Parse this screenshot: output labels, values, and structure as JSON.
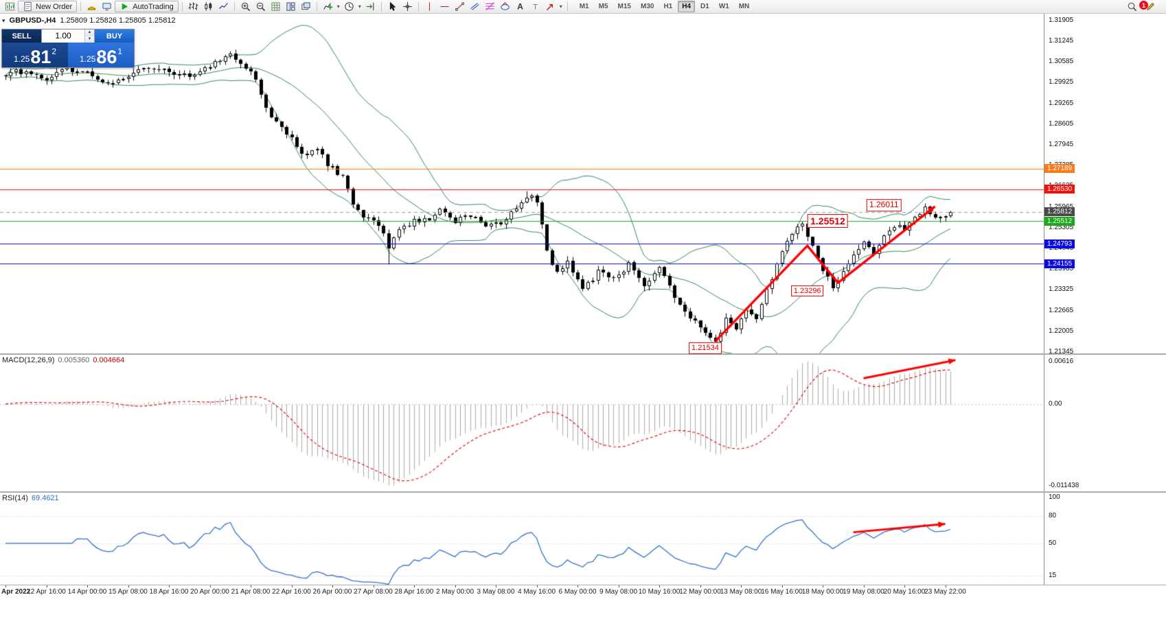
{
  "window": {
    "notification_badge": "1"
  },
  "toolbar": {
    "new_order": "New Order",
    "autotrading": "AutoTrading",
    "timeframes": [
      "M1",
      "M5",
      "M15",
      "M30",
      "H1",
      "H4",
      "D1",
      "W1",
      "MN"
    ],
    "active_timeframe": "H4"
  },
  "one_click": {
    "sell_label": "SELL",
    "buy_label": "BUY",
    "volume": "1.00",
    "sell_price": {
      "prefix": "1.25",
      "big": "81",
      "sup": "2"
    },
    "buy_price": {
      "prefix": "1.25",
      "big": "86",
      "sup": "1"
    }
  },
  "chart": {
    "symbol_timeframe": "GBPUSD-,H4",
    "ohlc": "1.25809 1.25826 1.25805 1.25812"
  },
  "price_axis": {
    "ticks": [
      "1.31905",
      "1.31245",
      "1.30585",
      "1.29925",
      "1.29265",
      "1.28605",
      "1.27945",
      "1.27285",
      "1.26625",
      "1.25965",
      "1.25305",
      "1.24645",
      "1.23985",
      "1.23325",
      "1.22665",
      "1.22005",
      "1.21345"
    ],
    "markers": [
      {
        "label": "1.27189",
        "color": "#F97B1C"
      },
      {
        "label": "1.26530",
        "color": "#F01010"
      },
      {
        "label": "1.25812",
        "color": "#4A4A4A"
      },
      {
        "label": "1.25512",
        "color": "#1CA81C"
      },
      {
        "label": "1.24793",
        "color": "#0A0AE6"
      },
      {
        "label": "1.24155",
        "color": "#0A0AE6"
      }
    ]
  },
  "macd_panel": {
    "name": "MACD(12,26,9)",
    "value_main": "0.005360",
    "value_signal": "0.004664",
    "axis_top": "0.00616",
    "axis_zero": "0.00",
    "axis_bottom": "-0.011438"
  },
  "rsi_panel": {
    "name": "RSI(14)",
    "value": "69.4621",
    "axis": [
      "100",
      "80",
      "50",
      "15"
    ]
  },
  "time_axis": {
    "labels": [
      "Apr 2022",
      "12 Apr 16:00",
      "14 Apr 00:00",
      "15 Apr 08:00",
      "18 Apr 16:00",
      "20 Apr 00:00",
      "21 Apr 08:00",
      "22 Apr 16:00",
      "26 Apr 00:00",
      "27 Apr 08:00",
      "28 Apr 16:00",
      "2 May 00:00",
      "3 May 08:00",
      "4 May 16:00",
      "6 May 00:00",
      "9 May 08:00",
      "10 May 16:00",
      "12 May 00:00",
      "13 May 08:00",
      "16 May 16:00",
      "18 May 00:00",
      "19 May 08:00",
      "20 May 16:00",
      "23 May 22:00"
    ]
  },
  "chart_data": {
    "type": "candlestick",
    "symbol": "GBPUSD-",
    "period": "H4",
    "bars": 186,
    "visible_price_range": [
      1.213,
      1.3212
    ],
    "current_price": 1.25812,
    "close_keyframes": [
      [
        0,
        1.3015
      ],
      [
        4,
        1.3035
      ],
      [
        8,
        1.3005
      ],
      [
        12,
        1.304
      ],
      [
        16,
        1.302
      ],
      [
        20,
        1.2995
      ],
      [
        24,
        1.301
      ],
      [
        28,
        1.3045
      ],
      [
        32,
        1.303
      ],
      [
        36,
        1.3012
      ],
      [
        40,
        1.3045
      ],
      [
        44,
        1.3078
      ],
      [
        46,
        1.306
      ],
      [
        48,
        1.303
      ],
      [
        50,
        1.296
      ],
      [
        52,
        1.2885
      ],
      [
        55,
        1.2832
      ],
      [
        58,
        1.2762
      ],
      [
        61,
        1.2772
      ],
      [
        64,
        1.2718
      ],
      [
        66,
        1.2688
      ],
      [
        68,
        1.2612
      ],
      [
        70,
        1.256
      ],
      [
        73,
        1.2545
      ],
      [
        75,
        1.2468
      ],
      [
        77,
        1.253
      ],
      [
        80,
        1.2548
      ],
      [
        83,
        1.2562
      ],
      [
        85,
        1.26
      ],
      [
        88,
        1.2552
      ],
      [
        91,
        1.2572
      ],
      [
        94,
        1.2526
      ],
      [
        97,
        1.255
      ],
      [
        100,
        1.2592
      ],
      [
        102,
        1.263
      ],
      [
        104,
        1.2618
      ],
      [
        106,
        1.2452
      ],
      [
        108,
        1.2385
      ],
      [
        110,
        1.2422
      ],
      [
        113,
        1.2335
      ],
      [
        116,
        1.2388
      ],
      [
        119,
        1.236
      ],
      [
        122,
        1.2418
      ],
      [
        125,
        1.2345
      ],
      [
        128,
        1.2398
      ],
      [
        131,
        1.231
      ],
      [
        134,
        1.2238
      ],
      [
        137,
        1.2205
      ],
      [
        139,
        1.2168
      ],
      [
        141,
        1.2242
      ],
      [
        143,
        1.2205
      ],
      [
        145,
        1.2268
      ],
      [
        147,
        1.2235
      ],
      [
        149,
        1.2325
      ],
      [
        151,
        1.2415
      ],
      [
        153,
        1.2482
      ],
      [
        155,
        1.253
      ],
      [
        156,
        1.2538
      ],
      [
        158,
        1.2465
      ],
      [
        160,
        1.2395
      ],
      [
        162,
        1.2338
      ],
      [
        164,
        1.2392
      ],
      [
        166,
        1.2448
      ],
      [
        168,
        1.2478
      ],
      [
        170,
        1.2452
      ],
      [
        172,
        1.2498
      ],
      [
        174,
        1.2538
      ],
      [
        176,
        1.2522
      ],
      [
        178,
        1.2558
      ],
      [
        180,
        1.2588
      ],
      [
        182,
        1.257
      ],
      [
        185,
        1.25812
      ]
    ],
    "extreme_anchors": [
      {
        "bar": 44,
        "high": 1.3095
      },
      {
        "bar": 75,
        "low": 1.2415
      },
      {
        "bar": 102,
        "high": 1.2648
      },
      {
        "bar": 139,
        "low": 1.21534
      },
      {
        "bar": 156,
        "high": 1.25512
      },
      {
        "bar": 162,
        "low": 1.23296
      },
      {
        "bar": 181,
        "high": 1.26011
      }
    ],
    "horizontal_lines": [
      {
        "price": 1.27189,
        "color": "#F97B1C"
      },
      {
        "price": 1.2653,
        "color": "#F01010"
      },
      {
        "price": 1.25512,
        "color": "#1CA81C"
      },
      {
        "price": 1.24793,
        "color": "#0A0AE6"
      },
      {
        "price": 1.24155,
        "color": "#0A0AE6"
      }
    ],
    "price_annotations": [
      {
        "bar": 137,
        "price": 1.2147,
        "text": "1.21534",
        "size": 11
      },
      {
        "bar": 157,
        "price": 1.2329,
        "text": "1.23296",
        "size": 11
      },
      {
        "bar": 161,
        "price": 1.2552,
        "text": "1.25512",
        "size": 14
      },
      {
        "bar": 172,
        "price": 1.2602,
        "text": "1.26011",
        "size": 12
      }
    ],
    "trend_arrow_price": {
      "color": "#FF0000",
      "points": [
        [
          139,
          1.2169
        ],
        [
          157,
          1.2473
        ],
        [
          163,
          1.2355
        ],
        [
          182,
          1.2598
        ]
      ]
    },
    "indicators": {
      "bollinger": {
        "period": 20,
        "deviation": 2,
        "color": "#2E8B57"
      },
      "macd": {
        "fast": 12,
        "slow": 26,
        "signal_period": 9,
        "histogram_color": "#A8A8A8",
        "signal_color": "#E00000",
        "scale_min": -0.0114,
        "arrow": {
          "color": "#FF0000",
          "points": [
            [
              168,
              0.0034
            ],
            [
              186,
              0.0058
            ]
          ]
        }
      },
      "rsi": {
        "period": 14,
        "color": "#2F6FD2",
        "levels": [
          80,
          50,
          15
        ],
        "arrow": {
          "color": "#FF0000",
          "points": [
            [
              166,
              62
            ],
            [
              184,
              71
            ]
          ]
        }
      }
    }
  }
}
